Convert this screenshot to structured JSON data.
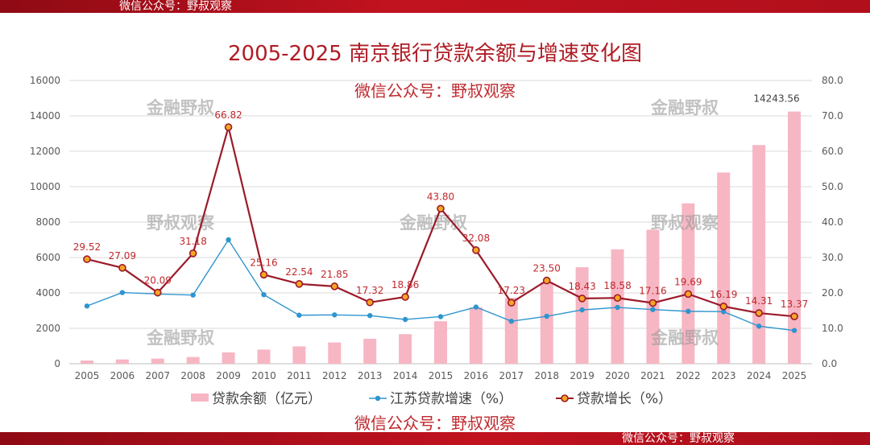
{
  "watermark_band": "微信公众号：野叔观察",
  "watermarks": {
    "center": "微信公众号：野叔观察",
    "jinrong": "金融野叔",
    "yeshu": "野叔观察"
  },
  "chart_data": {
    "type": "bar+line",
    "title": "2005-2025 南京银行贷款余额与增速变化图",
    "categories": [
      "2005",
      "2006",
      "2007",
      "2008",
      "2009",
      "2010",
      "2011",
      "2012",
      "2013",
      "2014",
      "2015",
      "2016",
      "2017",
      "2018",
      "2019",
      "2020",
      "2021",
      "2022",
      "2023",
      "2024",
      "2025"
    ],
    "y_left": {
      "min": 0,
      "max": 16000,
      "step": 2000,
      "ticks": [
        "0",
        "2000",
        "4000",
        "6000",
        "8000",
        "10000",
        "12000",
        "14000",
        "16000"
      ]
    },
    "y_right": {
      "min": 0,
      "max": 80,
      "step": 10,
      "ticks": [
        "0.0",
        "10.0",
        "20.0",
        "30.0",
        "40.0",
        "50.0",
        "60.0",
        "70.0",
        "80.0"
      ]
    },
    "series": [
      {
        "name": "贷款余额（亿元）",
        "type": "bar",
        "axis": "left",
        "color": "#f7b6c3",
        "values": [
          180,
          240,
          290,
          380,
          640,
          800,
          980,
          1200,
          1410,
          1670,
          2400,
          3180,
          3720,
          4600,
          5450,
          6460,
          7570,
          9060,
          10800,
          12350,
          14243.56
        ],
        "labels": [
          "",
          "",
          "",
          "",
          "",
          "",
          "",
          "",
          "",
          "",
          "",
          "",
          "",
          "",
          "",
          "",
          "",
          "",
          "",
          "",
          "14243.56"
        ]
      },
      {
        "name": "江苏贷款增速（%）",
        "type": "line",
        "axis": "right",
        "color": "#2e95cf",
        "values": [
          16.3,
          20.1,
          19.7,
          19.4,
          35.0,
          19.5,
          13.7,
          13.8,
          13.6,
          12.5,
          13.3,
          16.0,
          12.0,
          13.4,
          15.2,
          15.9,
          15.3,
          14.8,
          14.7,
          10.6,
          9.4
        ]
      },
      {
        "name": "贷款增长（%）",
        "type": "line",
        "axis": "right",
        "color": "#9b1b2a",
        "values": [
          29.52,
          27.09,
          20.09,
          31.18,
          66.82,
          25.16,
          22.54,
          21.85,
          17.32,
          18.86,
          43.8,
          32.08,
          17.23,
          23.5,
          18.43,
          18.58,
          17.16,
          19.69,
          16.19,
          14.31,
          13.37
        ],
        "labels": [
          "29.52",
          "27.09",
          "20.09",
          "31.18",
          "66.82",
          "25.16",
          "22.54",
          "21.85",
          "17.32",
          "18.86",
          "43.80",
          "32.08",
          "17.23",
          "23.50",
          "18.43",
          "18.58",
          "17.16",
          "19.69",
          "16.19",
          "14.31",
          "13.37"
        ]
      }
    ],
    "legend_position": "bottom",
    "grid": true
  },
  "colors": {
    "title": "#b01c25",
    "band": "#c1121f",
    "label": "#c0282d",
    "axis_text": "#595959",
    "grid": "#d9d9d9"
  }
}
